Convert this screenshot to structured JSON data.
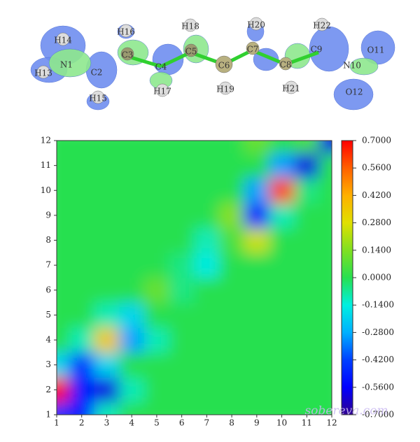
{
  "molecule": {
    "labels": [
      "H14",
      "N1",
      "H13",
      "C2",
      "H15",
      "H16",
      "C3",
      "C4",
      "H17",
      "H18",
      "C5",
      "C6",
      "H19",
      "H20",
      "C7",
      "C8",
      "H21",
      "H22",
      "C9",
      "N10",
      "O11",
      "O12"
    ]
  },
  "chart_data": {
    "type": "heatmap",
    "x": [
      1,
      2,
      3,
      4,
      5,
      6,
      7,
      8,
      9,
      10,
      11,
      12
    ],
    "y": [
      1,
      2,
      3,
      4,
      5,
      6,
      7,
      8,
      9,
      10,
      11,
      12
    ],
    "z": [
      [
        -0.45,
        -0.5,
        -0.1,
        0,
        0,
        0,
        0,
        0,
        0,
        0,
        0,
        0
      ],
      [
        0.7,
        -0.5,
        -0.6,
        -0.1,
        0,
        0,
        0,
        0,
        0,
        0,
        0,
        0
      ],
      [
        -0.2,
        -0.45,
        -0.2,
        0,
        0,
        0,
        0,
        0,
        0,
        0,
        0,
        0
      ],
      [
        0,
        -0.1,
        0.35,
        -0.3,
        -0.1,
        0,
        0,
        0,
        0,
        0,
        0,
        0
      ],
      [
        0,
        0,
        -0.1,
        -0.2,
        0,
        0,
        0,
        0,
        0,
        0,
        0,
        0
      ],
      [
        0,
        0,
        0,
        0,
        0.1,
        -0.05,
        0,
        0,
        0,
        0,
        0,
        0
      ],
      [
        0,
        0,
        0,
        0,
        0,
        -0.05,
        -0.15,
        0,
        0,
        0,
        0,
        0
      ],
      [
        0,
        0,
        0,
        0,
        0,
        0,
        -0.1,
        0.05,
        0.25,
        0,
        0,
        0
      ],
      [
        0,
        0,
        0,
        0,
        0,
        0,
        0,
        0.15,
        -0.55,
        -0.1,
        0,
        0
      ],
      [
        0,
        0,
        0,
        0,
        0,
        0,
        0,
        0,
        -0.3,
        0.6,
        -0.05,
        0
      ],
      [
        0,
        0,
        0,
        0,
        0,
        0,
        0,
        0,
        0,
        -0.3,
        -0.6,
        0
      ],
      [
        0,
        0,
        0,
        0,
        0,
        0,
        0,
        0,
        0.1,
        0,
        0.05,
        -0.6
      ]
    ],
    "xlim": [
      1,
      12
    ],
    "ylim": [
      1,
      12
    ],
    "xticks": [
      1,
      2,
      3,
      4,
      5,
      6,
      7,
      8,
      9,
      10,
      11,
      12
    ],
    "yticks": [
      1,
      2,
      3,
      4,
      5,
      6,
      7,
      8,
      9,
      10,
      11,
      12
    ],
    "clim": [
      -0.7,
      0.7
    ],
    "cticks": [
      {
        "value": 0.7,
        "label": "0.7000"
      },
      {
        "value": 0.56,
        "label": "0.5600"
      },
      {
        "value": 0.42,
        "label": "0.4200"
      },
      {
        "value": 0.28,
        "label": "0.2800"
      },
      {
        "value": 0.14,
        "label": "0.1400"
      },
      {
        "value": 0,
        "label": "0.0000"
      },
      {
        "value": -0.14,
        "label": "-0.1400"
      },
      {
        "value": -0.28,
        "label": "-0.2800"
      },
      {
        "value": -0.42,
        "label": "-0.4200"
      },
      {
        "value": -0.56,
        "label": "-0.5600"
      },
      {
        "value": -0.7,
        "label": "-0.7000"
      }
    ],
    "watermark": "sobereva.com"
  }
}
